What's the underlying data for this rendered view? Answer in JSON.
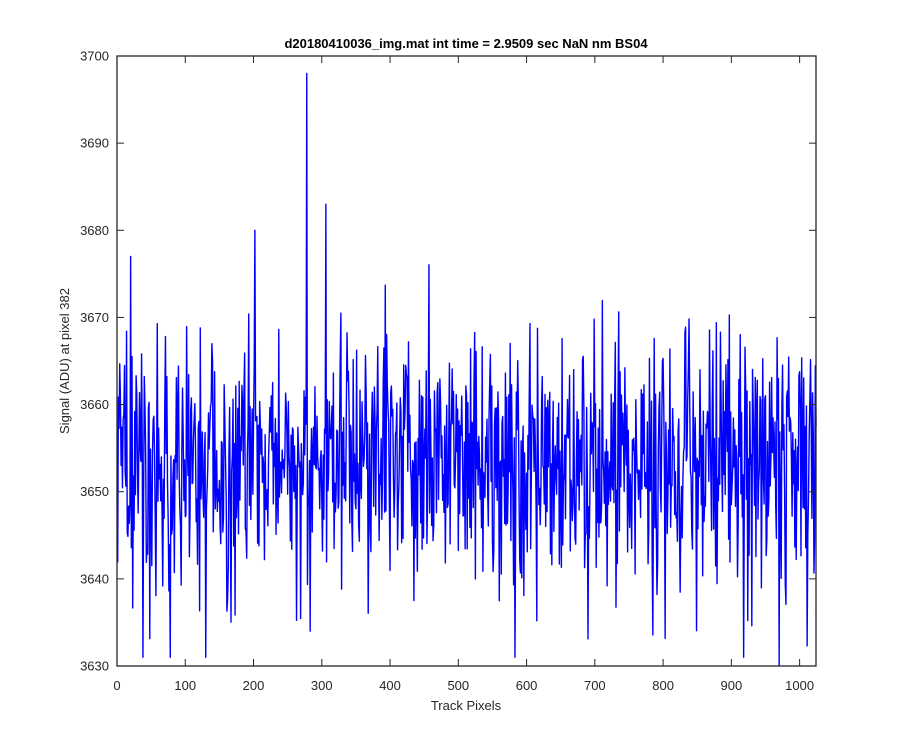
{
  "chart_data": {
    "type": "line",
    "title": "d20180410036_img.mat int time = 2.9509 sec  NaN nm BS04",
    "xlabel": "Track Pixels",
    "ylabel": "Signal (ADU) at pixel 382",
    "xlim": [
      0,
      1024
    ],
    "ylim": [
      3630,
      3700
    ],
    "xticks": [
      0,
      100,
      200,
      300,
      400,
      500,
      600,
      700,
      800,
      900,
      1000
    ],
    "yticks": [
      3630,
      3640,
      3650,
      3660,
      3670,
      3680,
      3690,
      3700
    ],
    "grid": false,
    "line_color": "#0000ff",
    "series": [
      {
        "x_start": 1,
        "x_step": 1,
        "mean": 3653.5,
        "std": 7.5,
        "count": 1024,
        "values": [],
        "notable_points": [
          {
            "x": 278,
            "y": 3698
          },
          {
            "x": 306,
            "y": 3683
          },
          {
            "x": 202,
            "y": 3680
          },
          {
            "x": 20,
            "y": 3677
          },
          {
            "x": 38,
            "y": 3631
          },
          {
            "x": 78,
            "y": 3631
          },
          {
            "x": 130,
            "y": 3631
          },
          {
            "x": 970,
            "y": 3630
          },
          {
            "x": 918,
            "y": 3631
          },
          {
            "x": 283,
            "y": 3634
          }
        ]
      }
    ]
  }
}
